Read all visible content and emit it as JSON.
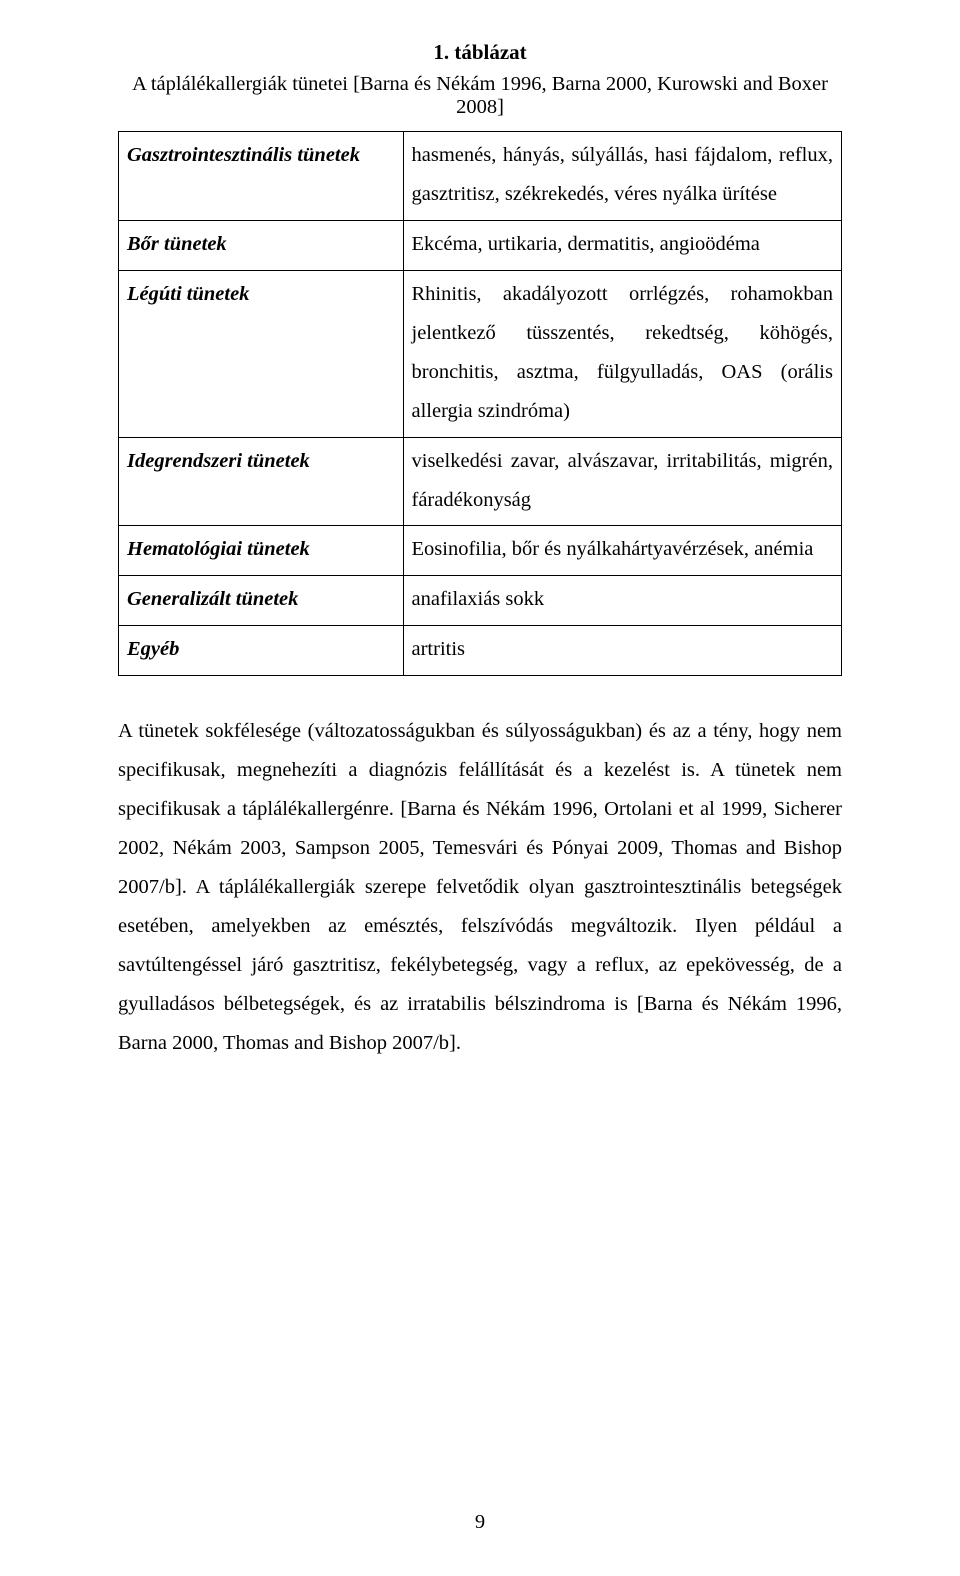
{
  "table": {
    "title": "1. táblázat",
    "caption": "A táplálékallergiák tünetei [Barna és Nékám 1996, Barna 2000, Kurowski and Boxer 2008]",
    "rows": [
      {
        "label": "Gasztrointesztinális tünetek",
        "desc": "hasmenés, hányás, súlyállás, hasi fájdalom, reflux, gasztritisz, székrekedés, véres nyálka ürítése"
      },
      {
        "label": "Bőr tünetek",
        "desc": "Ekcéma, urtikaria, dermatitis, angioödéma"
      },
      {
        "label": "Légúti tünetek",
        "desc": "Rhinitis, akadályozott orrlégzés, rohamokban jelentkező tüsszentés, rekedtség, köhögés, bronchitis, asztma, fülgyulladás, OAS (orális allergia szindróma)"
      },
      {
        "label": "Idegrendszeri tünetek",
        "desc": "viselkedési zavar, alvászavar, irritabilitás, migrén, fáradékonyság"
      },
      {
        "label": "Hematológiai tünetek",
        "desc": "Eosinofilia, bőr és nyálkahártyavérzések, anémia"
      },
      {
        "label": "Generalizált tünetek",
        "desc": "anafilaxiás sokk"
      },
      {
        "label": "Egyéb",
        "desc": "artritis"
      }
    ]
  },
  "paragraph": "A tünetek sokfélesége (változatosságukban és súlyosságukban) és az a tény, hogy nem specifikusak, megnehezíti a diagnózis felállítását és a kezelést is. A tünetek nem specifikusak a táplálékallergénre. [Barna és Nékám 1996, Ortolani et al 1999, Sicherer 2002, Nékám 2003, Sampson 2005, Temesvári és Pónyai 2009, Thomas and Bishop 2007/b]. A táplálékallergiák szerepe felvetődik olyan gasztrointesztinális betegségek esetében, amelyekben az emésztés, felszívódás megváltozik. Ilyen például a savtúltengéssel járó gasztritisz, fekélybetegség, vagy a reflux, az epekövesség, de a gyulladásos bélbetegségek, és az irratabilis bélszindroma is [Barna és Nékám 1996, Barna 2000, Thomas and Bishop 2007/b].",
  "pageNumber": "9"
}
